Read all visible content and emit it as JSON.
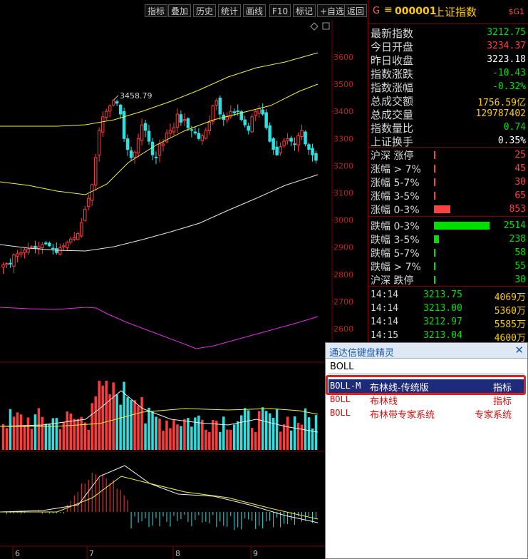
{
  "toolbar": {
    "buttons": [
      "指标",
      "叠加",
      "历史",
      "统计",
      "画线",
      "F10",
      "标记",
      "+自选",
      "返回"
    ]
  },
  "stock": {
    "market_tag": "G",
    "menu_icon": "≡",
    "code": "000001",
    "name": "上证指数",
    "right_tag": "$G1"
  },
  "stats": [
    {
      "label": "最新指数",
      "value": "3212.75",
      "color": "#00e000"
    },
    {
      "label": "今日开盘",
      "value": "3234.37",
      "color": "#ff4040"
    },
    {
      "label": "昨日收盘",
      "value": "3223.18",
      "color": "#ffffff"
    },
    {
      "label": "指数涨跌",
      "value": "-10.43",
      "color": "#00e000"
    },
    {
      "label": "指数涨幅",
      "value": "-0.32%",
      "color": "#00e000"
    },
    {
      "label": "总成交额",
      "value": "1756.59亿",
      "color": "#ffcc00"
    },
    {
      "label": "总成交量",
      "value": "129787402",
      "color": "#ffcc00"
    },
    {
      "label": "指数量比",
      "value": "0.74",
      "color": "#00e000"
    },
    {
      "label": "上证换手",
      "value": "0.35%",
      "color": "#ffffff"
    }
  ],
  "distribution": [
    {
      "label": "沪深 涨停",
      "value": "25",
      "color": "#ff4040",
      "fill": 0.01
    },
    {
      "label": "涨幅 > 7%",
      "value": "45",
      "color": "#ff4040",
      "fill": 0.01
    },
    {
      "label": "涨幅 5-7%",
      "value": "30",
      "color": "#ff4040",
      "fill": 0.01
    },
    {
      "label": "涨幅 3-5%",
      "value": "65",
      "color": "#ff4040",
      "fill": 0.03
    },
    {
      "label": "涨幅 0-3%",
      "value": "853",
      "color": "#ff4040",
      "fill": 0.29
    },
    {
      "label": "跌幅 0-3%",
      "value": "2514",
      "color": "#00e000",
      "fill": 0.98
    },
    {
      "label": "跌幅 3-5%",
      "value": "238",
      "color": "#00e000",
      "fill": 0.09
    },
    {
      "label": "跌幅 5-7%",
      "value": "58",
      "color": "#00e000",
      "fill": 0.01
    },
    {
      "label": "跌幅 > 7%",
      "value": "55",
      "color": "#00e000",
      "fill": 0.01
    },
    {
      "label": "沪深 跌停",
      "value": "30",
      "color": "#00e000",
      "fill": 0.01
    }
  ],
  "ticks": [
    {
      "time": "14:14",
      "price": "3213.75",
      "volume": "4069万"
    },
    {
      "time": "14:14",
      "price": "3213.00",
      "volume": "5360万"
    },
    {
      "time": "14:14",
      "price": "3212.97",
      "volume": "5585万"
    },
    {
      "time": "14:15",
      "price": "3213.04",
      "volume": "4600万"
    }
  ],
  "wizard": {
    "title": "通达信键盘精灵",
    "close_icon": "✕",
    "input_value": "BOLL",
    "results": [
      {
        "code": "BOLL-M",
        "desc": "布林线-传统版",
        "type": "指标",
        "selected": true
      },
      {
        "code": "BOLL",
        "desc": "布林线",
        "type": "指标",
        "selected": false
      },
      {
        "code": "BOLL",
        "desc": "布林带专家系统",
        "type": "专家系统",
        "selected": false
      }
    ]
  },
  "chart": {
    "high_label": "3458.79",
    "price_axis": [
      "3600",
      "3500",
      "3400",
      "3300",
      "3200",
      "3100",
      "3000",
      "2900",
      "2800",
      "2700",
      "2600"
    ],
    "date_axis": [
      "6",
      "7",
      "8",
      "9"
    ]
  },
  "chart_data": {
    "type": "candlestick",
    "ylim": [
      2560,
      3700
    ],
    "high": 3458.79,
    "closes": [
      2835,
      2840,
      2838,
      2872,
      2876,
      2880,
      2890,
      2893,
      2902,
      2897,
      2902,
      2910,
      2912,
      2905,
      2895,
      2880,
      2898,
      2905,
      2918,
      2930,
      2935,
      2950,
      2990,
      3040,
      3080,
      3130,
      3230,
      3330,
      3380,
      3400,
      3420,
      3440,
      3430,
      3390,
      3300,
      3260,
      3230,
      3250,
      3300,
      3350,
      3330,
      3290,
      3240,
      3230,
      3280,
      3280,
      3320,
      3330,
      3340,
      3390,
      3360,
      3370,
      3340,
      3330,
      3320,
      3300,
      3310,
      3330,
      3360,
      3420,
      3440,
      3390,
      3370,
      3380,
      3400,
      3395,
      3400,
      3370,
      3350,
      3330,
      3380,
      3400,
      3410,
      3390,
      3340,
      3290,
      3260,
      3240,
      3270,
      3290,
      3300,
      3290,
      3280,
      3310,
      3330,
      3280,
      3260,
      3240,
      3220
    ]
  }
}
